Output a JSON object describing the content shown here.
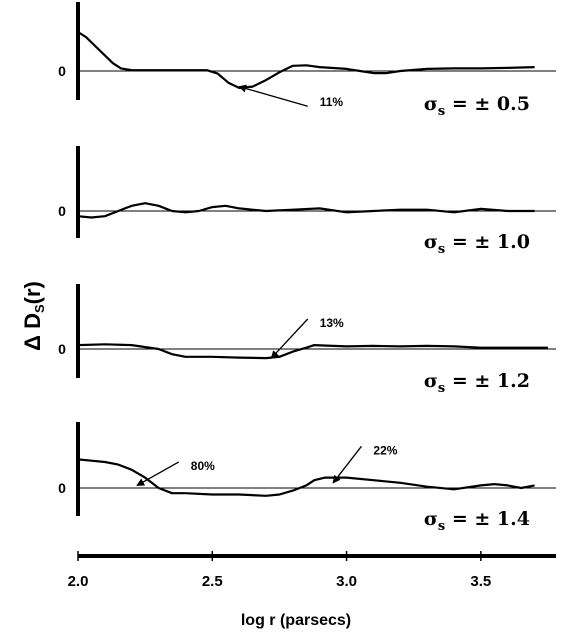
{
  "chart_data": {
    "type": "line",
    "ylabel": {
      "prefix": "Δ D",
      "sub": "S",
      "suffix": "(r)"
    },
    "xlabel": "log r (parsecs)",
    "xlim": [
      2.0,
      3.75
    ],
    "x_ticks": [
      {
        "value": 2.0,
        "label": "2.0"
      },
      {
        "value": 2.5,
        "label": "2.5"
      },
      {
        "value": 3.0,
        "label": "3.0"
      },
      {
        "value": 3.5,
        "label": "3.5"
      }
    ],
    "grid": false,
    "panels": [
      {
        "zero_label": "0",
        "sigma": {
          "sym": "σ",
          "sub": "s",
          "text": " = ± 0.5"
        },
        "ylim": [
          -0.15,
          0.3
        ],
        "series": {
          "x": [
            2.0,
            2.03,
            2.06,
            2.1,
            2.13,
            2.16,
            2.2,
            2.3,
            2.4,
            2.48,
            2.52,
            2.56,
            2.6,
            2.65,
            2.7,
            2.75,
            2.8,
            2.85,
            2.9,
            3.0,
            3.05,
            3.1,
            3.15,
            3.2,
            3.3,
            3.4,
            3.5,
            3.6,
            3.7
          ],
          "y": [
            0.15,
            0.13,
            0.1,
            0.06,
            0.03,
            0.01,
            0.003,
            0.003,
            0.003,
            0.003,
            -0.01,
            -0.045,
            -0.065,
            -0.06,
            -0.035,
            -0.005,
            0.02,
            0.022,
            0.015,
            0.008,
            0.0,
            -0.008,
            -0.008,
            0.0,
            0.008,
            0.01,
            0.01,
            0.012,
            0.015
          ]
        },
        "annotations": [
          {
            "label": "11%",
            "x": 2.6,
            "y": -0.06,
            "text_x": 2.9,
            "text_y": -0.12
          }
        ]
      },
      {
        "zero_label": "0",
        "sigma": {
          "sym": "σ",
          "sub": "s",
          "text": " = ± 1.0"
        },
        "ylim": [
          -0.15,
          0.3
        ],
        "series": {
          "x": [
            2.0,
            2.05,
            2.1,
            2.15,
            2.2,
            2.25,
            2.3,
            2.35,
            2.4,
            2.45,
            2.5,
            2.55,
            2.6,
            2.7,
            2.8,
            2.9,
            3.0,
            3.1,
            3.2,
            3.3,
            3.4,
            3.5,
            3.6,
            3.7
          ],
          "y": [
            -0.02,
            -0.025,
            -0.02,
            0.0,
            0.02,
            0.03,
            0.02,
            0.0,
            -0.005,
            0.0,
            0.015,
            0.02,
            0.01,
            0.0,
            0.005,
            0.01,
            -0.005,
            0.0,
            0.005,
            0.005,
            -0.005,
            0.008,
            0.0,
            0.0
          ]
        },
        "annotations": []
      },
      {
        "zero_label": "0",
        "sigma": {
          "sym": "σ",
          "sub": "s",
          "text": " = ± 1.2"
        },
        "ylim": [
          -0.15,
          0.3
        ],
        "series": {
          "x": [
            2.0,
            2.1,
            2.2,
            2.3,
            2.35,
            2.4,
            2.5,
            2.6,
            2.7,
            2.75,
            2.8,
            2.85,
            2.88,
            2.95,
            3.0,
            3.1,
            3.2,
            3.3,
            3.4,
            3.5,
            3.6,
            3.75
          ],
          "y": [
            0.015,
            0.018,
            0.015,
            0.0,
            -0.02,
            -0.03,
            -0.03,
            -0.033,
            -0.035,
            -0.03,
            -0.01,
            0.005,
            0.015,
            0.012,
            0.01,
            0.012,
            0.01,
            0.012,
            0.01,
            0.005,
            0.005,
            0.005
          ]
        },
        "annotations": [
          {
            "label": "13%",
            "x": 2.72,
            "y": -0.035,
            "text_x": 2.9,
            "text_y": 0.1
          }
        ]
      },
      {
        "zero_label": "0",
        "sigma": {
          "sym": "σ",
          "sub": "s",
          "text": " = ± 1.4"
        },
        "ylim": [
          -0.15,
          0.3
        ],
        "series": {
          "x": [
            2.0,
            2.05,
            2.1,
            2.15,
            2.2,
            2.25,
            2.3,
            2.35,
            2.4,
            2.5,
            2.6,
            2.7,
            2.75,
            2.8,
            2.85,
            2.88,
            2.92,
            3.0,
            3.1,
            3.2,
            3.3,
            3.4,
            3.5,
            3.55,
            3.6,
            3.65,
            3.7
          ],
          "y": [
            0.11,
            0.105,
            0.1,
            0.09,
            0.07,
            0.04,
            0.0,
            -0.02,
            -0.02,
            -0.025,
            -0.025,
            -0.03,
            -0.025,
            -0.01,
            0.01,
            0.03,
            0.04,
            0.04,
            0.03,
            0.02,
            0.005,
            -0.005,
            0.01,
            0.015,
            0.01,
            0.0,
            0.01
          ]
        },
        "annotations": [
          {
            "label": "80%",
            "x": 2.22,
            "y": 0.01,
            "text_x": 2.42,
            "text_y": 0.085
          },
          {
            "label": "22%",
            "x": 2.95,
            "y": 0.02,
            "text_x": 3.1,
            "text_y": 0.145
          }
        ]
      }
    ]
  }
}
